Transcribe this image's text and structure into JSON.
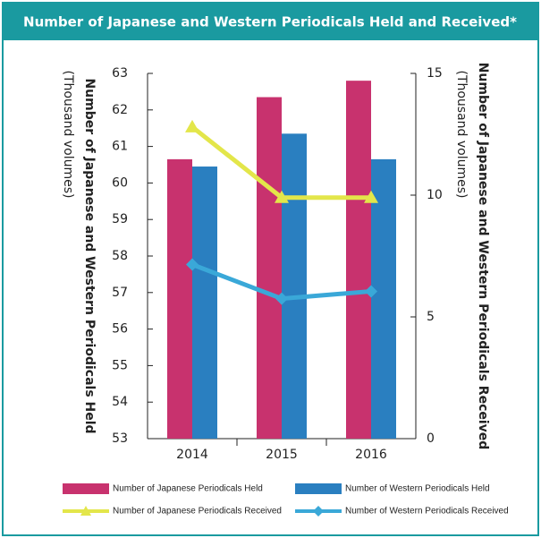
{
  "chart_data": {
    "type": "bar_line",
    "title": "Number of Japanese and Western Periodicals Held and Received*",
    "y_label": "Number of Japanese and Western Periodicals Held",
    "y_unit": "(Thousand volumes)",
    "y2_label": "Number of Japanese and Western Periodicals Received",
    "y2_unit": "(Thousand volumes)",
    "categories": [
      "2014",
      "2015",
      "2016"
    ],
    "series": [
      {
        "name": "Number of Japanese Periodicals Held",
        "color": "#c8326e",
        "kind": "bar",
        "values": [
          60.65,
          62.35,
          62.8
        ]
      },
      {
        "name": "Number of Western Periodicals Held",
        "color": "#2a7fc0",
        "kind": "bar",
        "values": [
          60.45,
          61.35,
          60.65
        ]
      },
      {
        "name": "Number of Japanese Periodicals Received",
        "color": "#e3e64a",
        "kind": "line",
        "marker": "triangle",
        "axis": "y2",
        "values": [
          12.8,
          9.9,
          9.9
        ]
      },
      {
        "name": "Number of Western Periodicals Received",
        "color": "#3aa8d8",
        "kind": "line",
        "marker": "diamond",
        "axis": "y2",
        "values": [
          7.15,
          5.75,
          6.05
        ]
      }
    ],
    "ylim": [
      53,
      63
    ],
    "yticks": [
      53,
      54,
      55,
      56,
      57,
      58,
      59,
      60,
      61,
      62,
      63
    ],
    "y2lim": [
      0,
      15
    ],
    "y2ticks": [
      0,
      5,
      10,
      15
    ]
  }
}
